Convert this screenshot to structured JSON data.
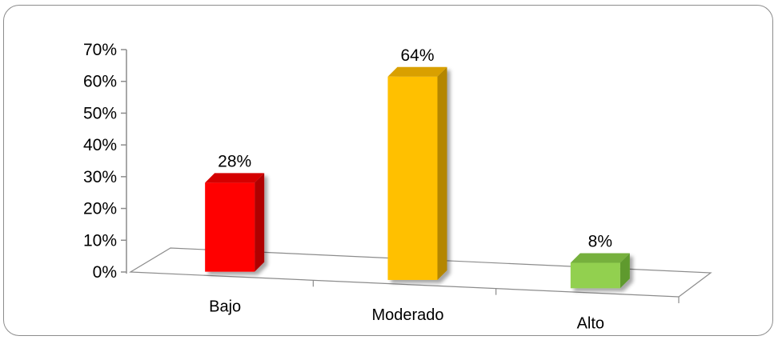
{
  "chart_data": {
    "type": "bar",
    "categories": [
      "Bajo",
      "Moderado",
      "Alto"
    ],
    "values": [
      28,
      64,
      8
    ],
    "data_labels": [
      "28%",
      "64%",
      "8%"
    ],
    "colors": [
      "#ff0000",
      "#ffc000",
      "#92d050"
    ],
    "side_colors": [
      "#b00000",
      "#b48600",
      "#5f9a2e"
    ],
    "top_colors": [
      "#d40000",
      "#d9a000",
      "#76b03c"
    ],
    "y_ticks": [
      0,
      10,
      20,
      30,
      40,
      50,
      60,
      70
    ],
    "y_tick_labels": [
      "0%",
      "10%",
      "20%",
      "30%",
      "40%",
      "50%",
      "60%",
      "70%"
    ],
    "ylim": [
      0,
      70
    ],
    "grid": false,
    "legend": "none",
    "title": "",
    "xlabel": "",
    "ylabel": ""
  }
}
